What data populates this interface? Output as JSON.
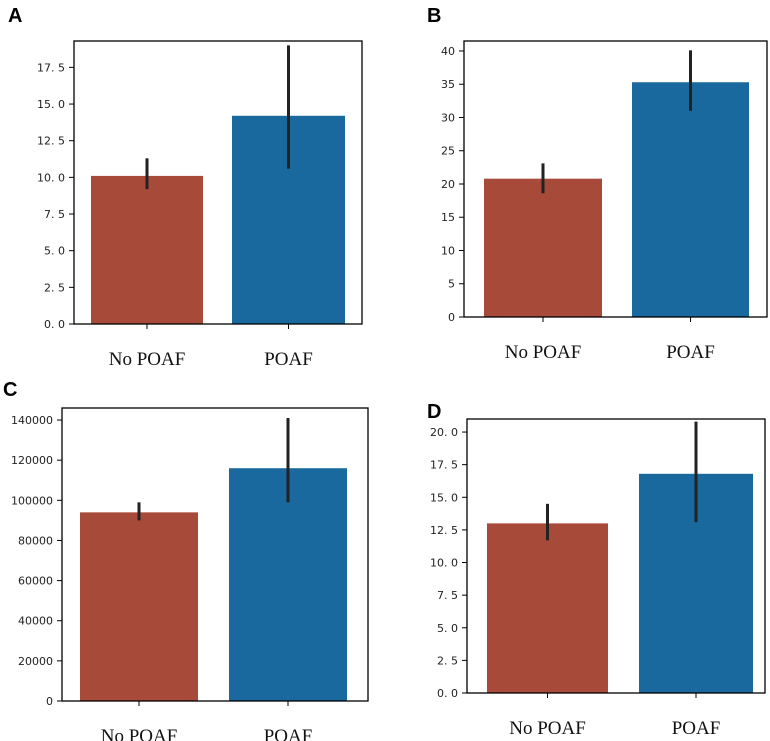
{
  "colors": {
    "no_poaf": "#a84a39",
    "poaf": "#19699f",
    "error_bar": "#222222"
  },
  "chart_data": [
    {
      "panel": "A",
      "type": "bar",
      "categories": [
        "No POAF",
        "POAF"
      ],
      "values": [
        10.1,
        14.2
      ],
      "error_low": [
        9.2,
        10.6
      ],
      "error_high": [
        11.3,
        19.0
      ],
      "ylim": [
        0,
        19.3
      ],
      "yticks": [
        0,
        2.5,
        5,
        7.5,
        10,
        12.5,
        15,
        17.5
      ],
      "ytick_labels": [
        "0. 0",
        "2. 5",
        "5. 0",
        "7. 5",
        "10. 0",
        "12. 5",
        "15. 0",
        "17. 5"
      ],
      "xlabel": "",
      "ylabel": "",
      "title": ""
    },
    {
      "panel": "B",
      "type": "bar",
      "categories": [
        "No POAF",
        "POAF"
      ],
      "values": [
        20.8,
        35.3
      ],
      "error_low": [
        18.6,
        31.0
      ],
      "error_high": [
        23.1,
        40.1
      ],
      "ylim": [
        0,
        41.5
      ],
      "yticks": [
        0,
        5,
        10,
        15,
        20,
        25,
        30,
        35,
        40
      ],
      "ytick_labels": [
        "0",
        "5",
        "10",
        "15",
        "20",
        "25",
        "30",
        "35",
        "40"
      ],
      "xlabel": "",
      "ylabel": "",
      "title": ""
    },
    {
      "panel": "C",
      "type": "bar",
      "categories": [
        "No POAF",
        "POAF"
      ],
      "values": [
        94000,
        116000
      ],
      "error_low": [
        90000,
        99000
      ],
      "error_high": [
        99000,
        141000
      ],
      "ylim": [
        0,
        146000
      ],
      "yticks": [
        0,
        20000,
        40000,
        60000,
        80000,
        100000,
        120000,
        140000
      ],
      "ytick_labels": [
        "0",
        "20000",
        "40000",
        "60000",
        "80000",
        "100000",
        "120000",
        "140000"
      ],
      "xlabel": "",
      "ylabel": "",
      "title": ""
    },
    {
      "panel": "D",
      "type": "bar",
      "categories": [
        "No POAF",
        "POAF"
      ],
      "values": [
        13.0,
        16.8
      ],
      "error_low": [
        11.7,
        13.1
      ],
      "error_high": [
        14.5,
        20.8
      ],
      "ylim": [
        0,
        21.0
      ],
      "yticks": [
        0,
        2.5,
        5,
        7.5,
        10,
        12.5,
        15,
        17.5,
        20
      ],
      "ytick_labels": [
        "0. 0",
        "2. 5",
        "5. 0",
        "7. 5",
        "10. 0",
        "12. 5",
        "15. 0",
        "17. 5",
        "20. 0"
      ],
      "xlabel": "",
      "ylabel": "",
      "title": ""
    }
  ]
}
